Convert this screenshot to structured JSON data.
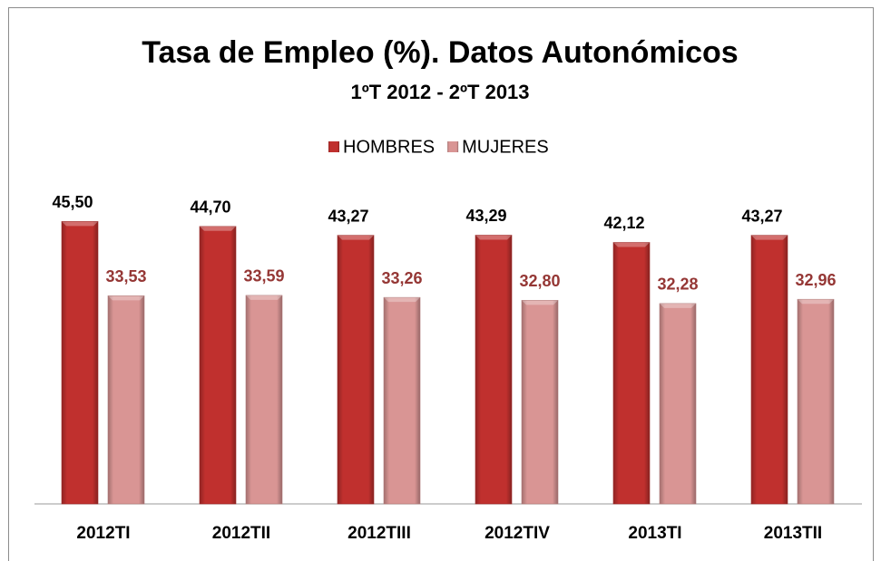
{
  "chart_data": {
    "type": "bar",
    "title": "Tasa de Empleo (%). Datos Autonómicos",
    "subtitle": "1ºT 2012 - 2ºT 2013",
    "categories": [
      "2012TI",
      "2012TII",
      "2012TIII",
      "2012TIV",
      "2013TI",
      "2013TII"
    ],
    "series": [
      {
        "name": "HOMBRES",
        "color": "#c0302e",
        "label_color": "#000000",
        "values": [
          45.5,
          44.7,
          43.27,
          43.29,
          42.12,
          43.27
        ],
        "value_labels": [
          "45,50",
          "44,70",
          "43,27",
          "43,29",
          "42,12",
          "43,27"
        ]
      },
      {
        "name": "MUJERES",
        "color": "#d99594",
        "label_color": "#953735",
        "values": [
          33.53,
          33.59,
          33.26,
          32.8,
          32.28,
          32.96
        ],
        "value_labels": [
          "33,53",
          "33,59",
          "33,26",
          "32,80",
          "32,28",
          "32,96"
        ]
      }
    ],
    "ylim": [
      0,
      50
    ],
    "legend": "top"
  }
}
